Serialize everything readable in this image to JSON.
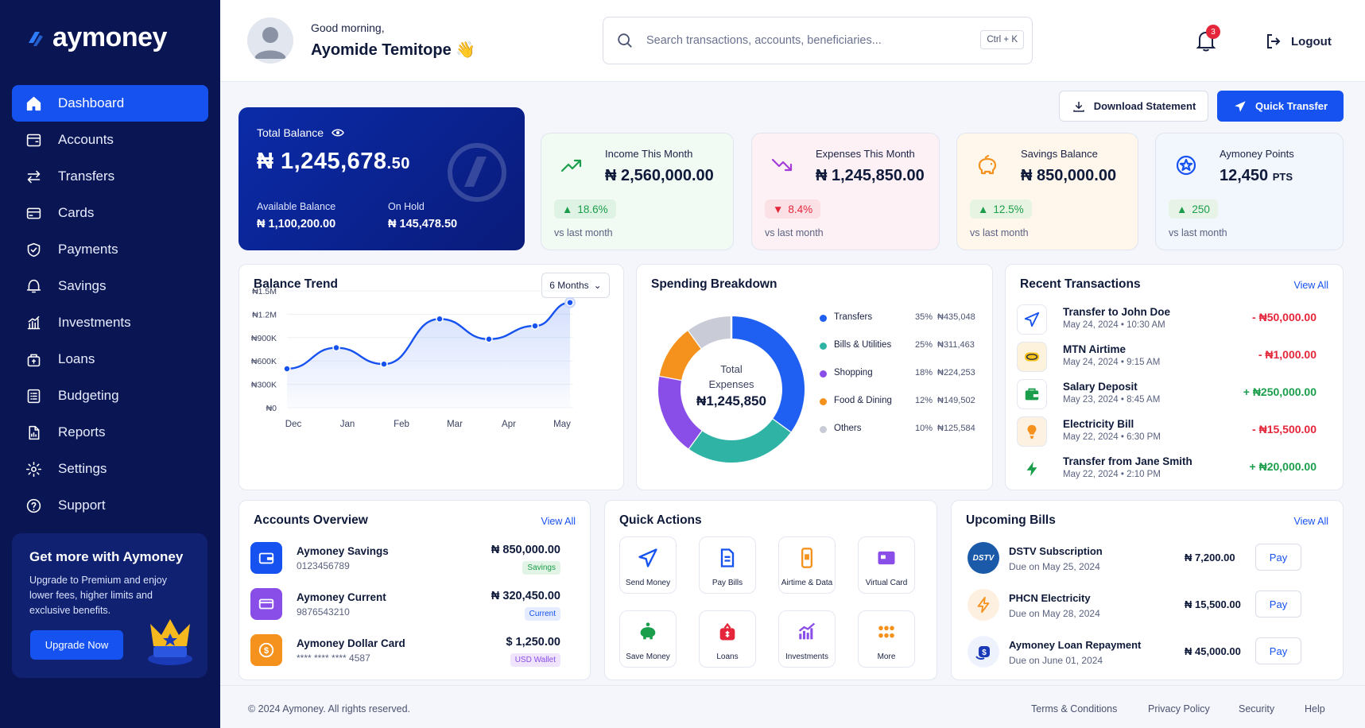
{
  "brand": {
    "name": "aymoney"
  },
  "sidebar": {
    "items": [
      {
        "label": "Dashboard",
        "icon": "home-icon"
      },
      {
        "label": "Accounts",
        "icon": "accounts-icon"
      },
      {
        "label": "Transfers",
        "icon": "transfers-icon"
      },
      {
        "label": "Cards",
        "icon": "card-icon"
      },
      {
        "label": "Payments",
        "icon": "shield-check-icon"
      },
      {
        "label": "Savings",
        "icon": "savings-icon"
      },
      {
        "label": "Investments",
        "icon": "bar-chart-icon"
      },
      {
        "label": "Loans",
        "icon": "loan-icon"
      },
      {
        "label": "Budgeting",
        "icon": "budget-icon"
      },
      {
        "label": "Reports",
        "icon": "report-icon"
      },
      {
        "label": "Settings",
        "icon": "gear-icon"
      },
      {
        "label": "Support",
        "icon": "help-icon"
      }
    ],
    "promo": {
      "title": "Get more with Aymoney",
      "text": "Upgrade to Premium and enjoy lower fees, higher limits and exclusive benefits.",
      "button": "Upgrade Now"
    }
  },
  "header": {
    "greeting": "Good morning,",
    "name": "Ayomide Temitope 👋",
    "search_placeholder": "Search transactions, accounts, beneficiaries...",
    "shortcut": "Ctrl + K",
    "notification_count": "3",
    "logout": "Logout"
  },
  "actions": {
    "download": "Download Statement",
    "transfer": "Quick Transfer"
  },
  "balance": {
    "label": "Total Balance",
    "amount_main": "₦ 1,245,678",
    "amount_cents": ".50",
    "available_label": "Available Balance",
    "available_value": "₦ 1,100,200.00",
    "hold_label": "On Hold",
    "hold_value": "₦ 145,478.50"
  },
  "stats": [
    {
      "title": "Income This Month",
      "value": "₦ 2,560,000.00",
      "change": "18.6%",
      "direction": "up",
      "vs": "vs last month"
    },
    {
      "title": "Expenses This Month",
      "value": "₦ 1,245,850.00",
      "change": "8.4%",
      "direction": "down",
      "vs": "vs last month"
    },
    {
      "title": "Savings Balance",
      "value": "₦ 850,000.00",
      "change": "12.5%",
      "direction": "up",
      "vs": "vs last month"
    },
    {
      "title": "Aymoney Points",
      "value": "12,450",
      "unit": "PTS",
      "change": "250",
      "direction": "up",
      "vs": "vs last month"
    }
  ],
  "balance_trend": {
    "title": "Balance Trend",
    "range": "6 Months",
    "chart_data": {
      "type": "line",
      "title": "Balance Trend",
      "x": [
        "Dec",
        "Jan",
        "Feb",
        "Mar",
        "Apr",
        "May"
      ],
      "y_ticks": [
        "₦0",
        "₦300K",
        "₦600K",
        "₦900K",
        "₦1.2M",
        "₦1.5M"
      ],
      "ylim": [
        0,
        1500000
      ],
      "points": [
        {
          "x": "Dec",
          "y": 500000
        },
        {
          "x": "Jan",
          "y": 770000
        },
        {
          "x": "Jan-Feb",
          "y": 560000
        },
        {
          "x": "Mar",
          "y": 1140000
        },
        {
          "x": "Mar-Apr",
          "y": 880000
        },
        {
          "x": "Apr-May",
          "y": 1050000
        },
        {
          "x": "May",
          "y": 1350000
        }
      ]
    }
  },
  "spending": {
    "title": "Spending Breakdown",
    "center_label": "Total Expenses",
    "center_value": "₦1,245,850",
    "chart_data": {
      "type": "pie",
      "title": "Spending Breakdown",
      "slices": [
        {
          "name": "Transfers",
          "percent": 35,
          "value": "₦435,048",
          "color": "#1f5ff2"
        },
        {
          "name": "Bills & Utilities",
          "percent": 25,
          "value": "₦311,463",
          "color": "#2fb3a5"
        },
        {
          "name": "Shopping",
          "percent": 18,
          "value": "₦224,253",
          "color": "#8a4ee8"
        },
        {
          "name": "Food & Dining",
          "percent": 12,
          "value": "₦149,502",
          "color": "#f5921e"
        },
        {
          "name": "Others",
          "percent": 10,
          "value": "₦125,584",
          "color": "#c9ccd6"
        }
      ]
    }
  },
  "recent": {
    "title": "Recent Transactions",
    "view_all": "View All",
    "items": [
      {
        "name": "Transfer to John Doe",
        "date": "May 24, 2024  •  10:30 AM",
        "amount": "- ₦50,000.00",
        "type": "debit",
        "icon": "send-icon"
      },
      {
        "name": "MTN Airtime",
        "date": "May 24, 2024  •  9:15 AM",
        "amount": "- ₦1,000.00",
        "type": "debit",
        "icon": "mtn-icon"
      },
      {
        "name": "Salary Deposit",
        "date": "May 23, 2024  •  8:45 AM",
        "amount": "+ ₦250,000.00",
        "type": "credit",
        "icon": "wallet-icon"
      },
      {
        "name": "Electricity Bill",
        "date": "May 22, 2024  •  6:30 PM",
        "amount": "- ₦15,500.00",
        "type": "debit",
        "icon": "bulb-icon"
      },
      {
        "name": "Transfer from Jane Smith",
        "date": "May 22, 2024  •  2:10 PM",
        "amount": "+ ₦20,000.00",
        "type": "credit",
        "icon": "bolt-icon"
      }
    ]
  },
  "accounts": {
    "title": "Accounts Overview",
    "view_all": "View All",
    "items": [
      {
        "name": "Aymoney Savings",
        "number": "0123456789",
        "amount": "₦ 850,000.00",
        "tag": "Savings"
      },
      {
        "name": "Aymoney Current",
        "number": "9876543210",
        "amount": "₦ 320,450.00",
        "tag": "Current"
      },
      {
        "name": "Aymoney Dollar Card",
        "number": "**** **** **** 4587",
        "amount": "$ 1,250.00",
        "tag": "USD Wallet"
      }
    ]
  },
  "quick_actions": {
    "title": "Quick Actions",
    "items": [
      {
        "label": "Send Money",
        "icon": "send-icon"
      },
      {
        "label": "Pay Bills",
        "icon": "bill-icon"
      },
      {
        "label": "Airtime & Data",
        "icon": "phone-icon"
      },
      {
        "label": "Virtual Card",
        "icon": "card-icon"
      },
      {
        "label": "Save Money",
        "icon": "piggy-icon"
      },
      {
        "label": "Loans",
        "icon": "loan-bag-icon"
      },
      {
        "label": "Investments",
        "icon": "chart-icon"
      },
      {
        "label": "More",
        "icon": "grid-dots-icon"
      }
    ]
  },
  "bills": {
    "title": "Upcoming Bills",
    "view_all": "View All",
    "pay_label": "Pay",
    "items": [
      {
        "name": "DSTV Subscription",
        "due": "Due on May 25, 2024",
        "amount": "₦ 7,200.00",
        "logo_text": "DSTV"
      },
      {
        "name": "PHCN Electricity",
        "due": "Due on May 28, 2024",
        "amount": "₦ 15,500.00"
      },
      {
        "name": "Aymoney Loan Repayment",
        "due": "Due on June 01, 2024",
        "amount": "₦ 45,000.00"
      }
    ]
  },
  "footer": {
    "copyright": "© 2024 Aymoney. All rights reserved.",
    "links": [
      "Terms & Conditions",
      "Privacy Policy",
      "Security",
      "Help"
    ]
  },
  "colors": {
    "primary": "#1652f0",
    "sidebar": "#0a1654",
    "success": "#1a9e4b",
    "danger": "#e5263a"
  }
}
